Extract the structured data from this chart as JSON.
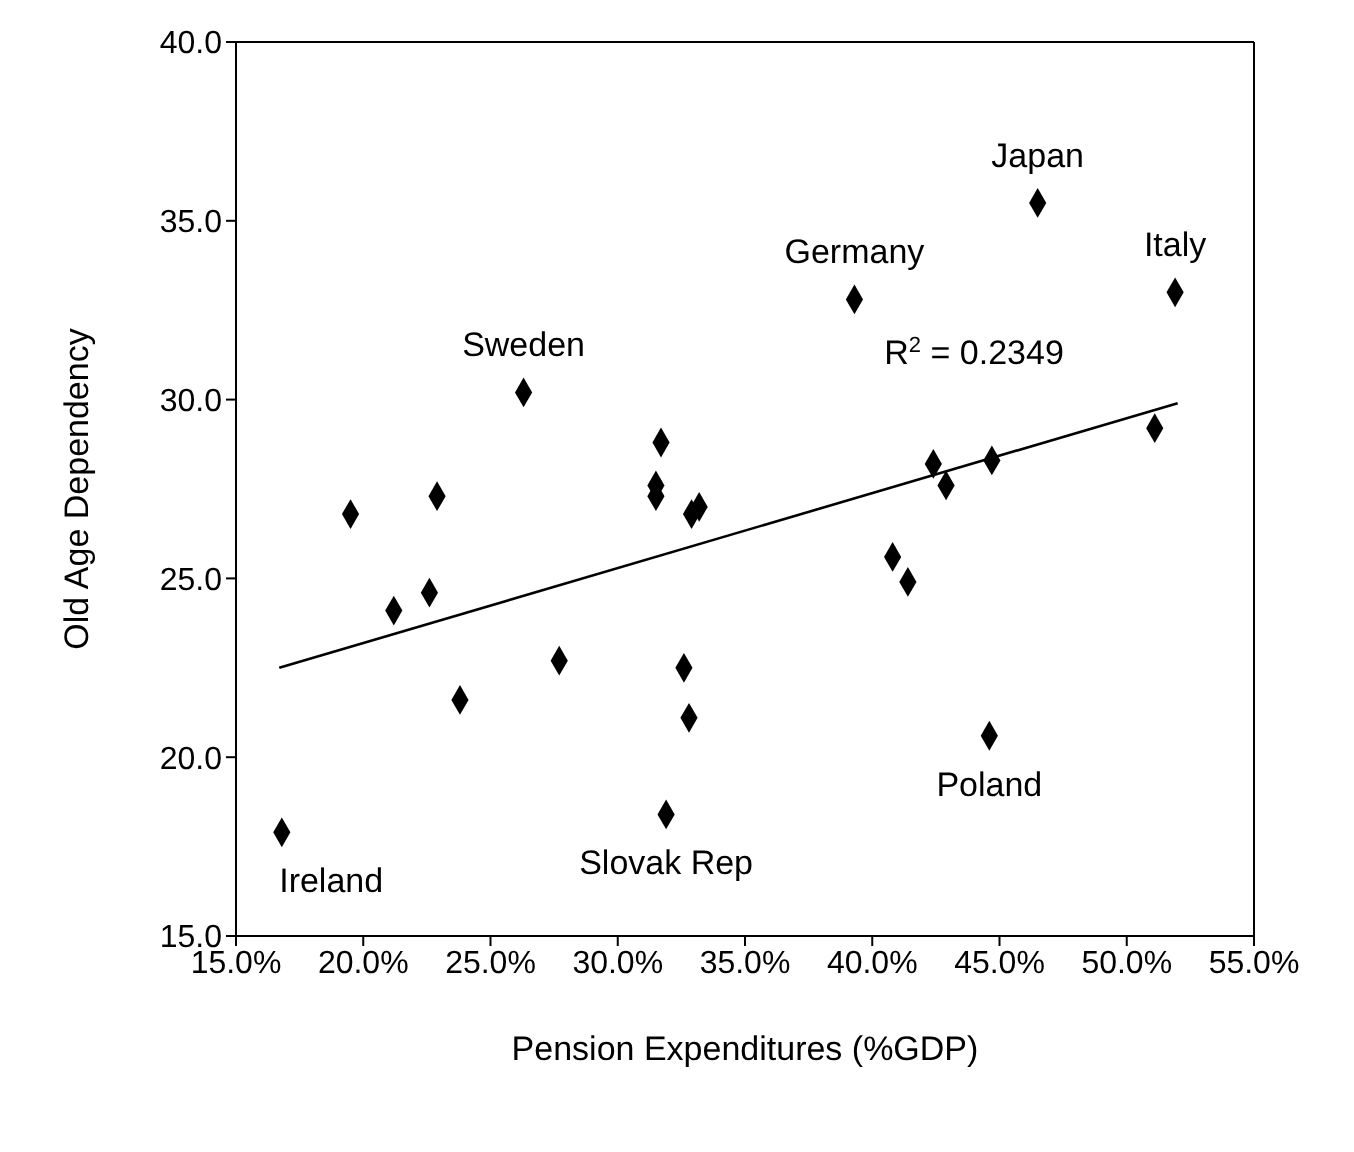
{
  "chart_data": {
    "type": "scatter",
    "xlabel": "Pension Expenditures (%GDP)",
    "ylabel": "Old Age Dependency",
    "xlim": [
      15,
      55
    ],
    "xticks": [
      {
        "value": 15,
        "label": "15.0%"
      },
      {
        "value": 20,
        "label": "20.0%"
      },
      {
        "value": 25,
        "label": "25.0%"
      },
      {
        "value": 30,
        "label": "30.0%"
      },
      {
        "value": 35,
        "label": "35.0%"
      },
      {
        "value": 40,
        "label": "40.0%"
      },
      {
        "value": 45,
        "label": "45.0%"
      },
      {
        "value": 50,
        "label": "50.0%"
      },
      {
        "value": 55,
        "label": "55.0%"
      }
    ],
    "ylim": [
      15,
      40
    ],
    "yticks": [
      {
        "value": 15,
        "label": "15.0"
      },
      {
        "value": 20,
        "label": "20.0"
      },
      {
        "value": 25,
        "label": "25.0"
      },
      {
        "value": 30,
        "label": "30.0"
      },
      {
        "value": 35,
        "label": "35.0"
      },
      {
        "value": 40,
        "label": "40.0"
      }
    ],
    "grid": false,
    "series": [
      {
        "marker": "diamond",
        "color": "#000000",
        "x": [
          16.8,
          19.5,
          21.2,
          22.6,
          22.9,
          23.8,
          26.3,
          27.7,
          31.7,
          31.5,
          31.5,
          32.9,
          33.2,
          32.6,
          32.8,
          31.9,
          39.3,
          46.5,
          51.9,
          51.1,
          42.4,
          44.7,
          42.9,
          40.8,
          41.4,
          44.6
        ],
        "values": [
          17.9,
          26.8,
          24.1,
          24.6,
          27.3,
          21.6,
          30.2,
          22.7,
          28.8,
          27.6,
          27.3,
          26.8,
          27.0,
          22.5,
          21.1,
          18.4,
          32.8,
          35.5,
          33.0,
          29.2,
          28.2,
          28.3,
          27.6,
          25.6,
          24.9,
          20.6
        ]
      },
      {
        "type": "line",
        "color": "#000000",
        "x": [
          16.7,
          52.0
        ],
        "values": [
          22.5,
          29.9
        ]
      }
    ],
    "annotations": [
      {
        "text": "Ireland",
        "x": 16.8,
        "y": 17.9
      },
      {
        "text": "Sweden",
        "x": 26.3,
        "y": 30.2
      },
      {
        "text": "Slovak Rep",
        "x": 31.9,
        "y": 18.4
      },
      {
        "text": "Germany",
        "x": 39.3,
        "y": 32.8
      },
      {
        "text": "Japan",
        "x": 46.5,
        "y": 35.5
      },
      {
        "text": "Italy",
        "x": 51.9,
        "y": 33.0
      },
      {
        "text": "Poland",
        "x": 44.6,
        "y": 20.6
      },
      "R$^{2}$ = 0.2349"
    ]
  }
}
